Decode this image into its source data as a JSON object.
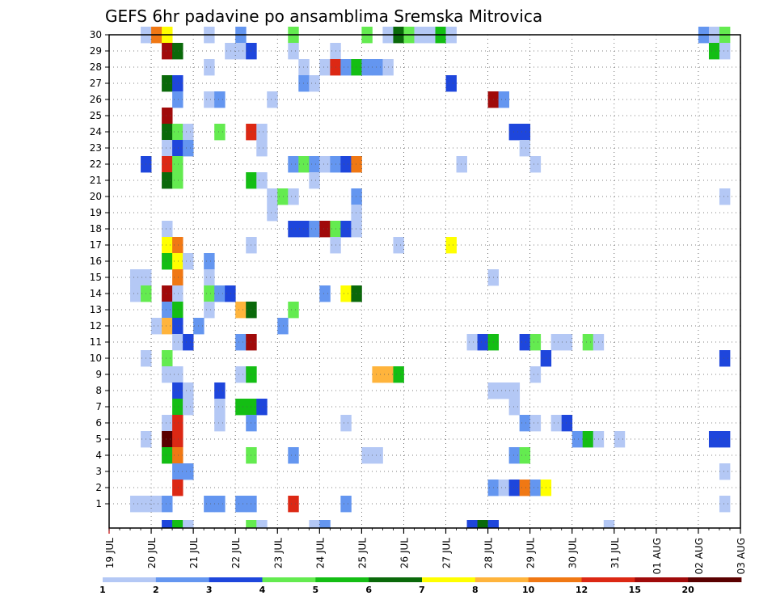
{
  "chart_data": {
    "type": "heatmap",
    "title": "GEFS 6hr padavine po ansamblima Sremska Mitrovica",
    "y_ticks": [
      "1",
      "2",
      "3",
      "4",
      "5",
      "6",
      "7",
      "8",
      "9",
      "10",
      "11",
      "12",
      "13",
      "14",
      "15",
      "16",
      "17",
      "18",
      "19",
      "20",
      "21",
      "22",
      "23",
      "24",
      "25",
      "26",
      "27",
      "28",
      "29",
      "30"
    ],
    "x_ticks": [
      "19 JUL",
      "20 JUL",
      "21 JUL",
      "22 JUL",
      "23 JUL",
      "24 JUL",
      "25 JUL",
      "26 JUL",
      "27 JUL",
      "28 JUL",
      "29 JUL",
      "30 JUL",
      "31 JUL",
      "01 AUG",
      "02 AUG",
      "03 AUG"
    ],
    "x_range_days": [
      "19 JUL",
      "03 AUG"
    ],
    "steps_per_day": 4,
    "legend_thresholds": [
      "1",
      "2",
      "3",
      "4",
      "5",
      "6",
      "7",
      "8",
      "10",
      "12",
      "15",
      "20"
    ],
    "colors": [
      "#b4c8f5",
      "#6496f0",
      "#1e46dc",
      "#64eb50",
      "#14be14",
      "#0a690a",
      "#ffff00",
      "#ffb43c",
      "#f07814",
      "#dc2814",
      "#a00a0a",
      "#5a0000"
    ],
    "grid": true,
    "cells": [
      [
        30,
        3,
        1
      ],
      [
        30,
        4,
        9
      ],
      [
        30,
        5,
        7
      ],
      [
        30,
        9,
        1
      ],
      [
        30,
        12,
        2
      ],
      [
        30,
        17,
        4
      ],
      [
        30,
        24,
        4
      ],
      [
        30,
        26,
        1
      ],
      [
        30,
        27,
        6
      ],
      [
        30,
        28,
        4
      ],
      [
        30,
        29,
        1
      ],
      [
        30,
        30,
        1
      ],
      [
        30,
        31,
        5
      ],
      [
        30,
        32,
        1
      ],
      [
        30,
        56,
        2
      ],
      [
        30,
        57,
        1
      ],
      [
        30,
        58,
        4
      ],
      [
        29,
        5,
        11
      ],
      [
        29,
        6,
        6
      ],
      [
        29,
        11,
        1
      ],
      [
        29,
        12,
        1
      ],
      [
        29,
        13,
        3
      ],
      [
        29,
        17,
        1
      ],
      [
        29,
        21,
        1
      ],
      [
        29,
        57,
        5
      ],
      [
        29,
        58,
        1
      ],
      [
        28,
        9,
        1
      ],
      [
        28,
        18,
        1
      ],
      [
        28,
        20,
        1
      ],
      [
        28,
        21,
        10
      ],
      [
        28,
        22,
        2
      ],
      [
        28,
        23,
        5
      ],
      [
        28,
        24,
        2
      ],
      [
        28,
        25,
        2
      ],
      [
        28,
        26,
        1
      ],
      [
        27,
        5,
        6
      ],
      [
        27,
        6,
        3
      ],
      [
        27,
        18,
        2
      ],
      [
        27,
        19,
        1
      ],
      [
        27,
        32,
        3
      ],
      [
        26,
        6,
        2
      ],
      [
        26,
        9,
        1
      ],
      [
        26,
        10,
        2
      ],
      [
        26,
        15,
        1
      ],
      [
        26,
        36,
        11
      ],
      [
        26,
        37,
        2
      ],
      [
        25,
        5,
        11
      ],
      [
        24,
        5,
        6
      ],
      [
        24,
        6,
        4
      ],
      [
        24,
        7,
        1
      ],
      [
        24,
        10,
        4
      ],
      [
        24,
        13,
        10
      ],
      [
        24,
        14,
        1
      ],
      [
        24,
        38,
        3
      ],
      [
        24,
        39,
        3
      ],
      [
        23,
        5,
        1
      ],
      [
        23,
        6,
        3
      ],
      [
        23,
        7,
        2
      ],
      [
        23,
        14,
        1
      ],
      [
        23,
        39,
        1
      ],
      [
        22,
        3,
        3
      ],
      [
        22,
        5,
        10
      ],
      [
        22,
        6,
        4
      ],
      [
        22,
        17,
        2
      ],
      [
        22,
        18,
        4
      ],
      [
        22,
        19,
        2
      ],
      [
        22,
        20,
        1
      ],
      [
        22,
        21,
        2
      ],
      [
        22,
        22,
        3
      ],
      [
        22,
        23,
        9
      ],
      [
        22,
        33,
        1
      ],
      [
        22,
        40,
        1
      ],
      [
        21,
        5,
        6
      ],
      [
        21,
        6,
        4
      ],
      [
        21,
        13,
        5
      ],
      [
        21,
        14,
        1
      ],
      [
        21,
        19,
        1
      ],
      [
        20,
        15,
        1
      ],
      [
        20,
        16,
        4
      ],
      [
        20,
        17,
        1
      ],
      [
        20,
        23,
        2
      ],
      [
        20,
        58,
        1
      ],
      [
        19,
        15,
        1
      ],
      [
        19,
        23,
        1
      ],
      [
        18,
        5,
        1
      ],
      [
        18,
        17,
        3
      ],
      [
        18,
        18,
        3
      ],
      [
        18,
        19,
        2
      ],
      [
        18,
        20,
        11
      ],
      [
        18,
        21,
        4
      ],
      [
        18,
        22,
        3
      ],
      [
        18,
        23,
        1
      ],
      [
        17,
        5,
        7
      ],
      [
        17,
        6,
        9
      ],
      [
        17,
        13,
        1
      ],
      [
        17,
        21,
        1
      ],
      [
        17,
        27,
        1
      ],
      [
        17,
        32,
        7
      ],
      [
        16,
        5,
        5
      ],
      [
        16,
        6,
        7
      ],
      [
        16,
        7,
        1
      ],
      [
        16,
        9,
        2
      ],
      [
        15,
        2,
        1
      ],
      [
        15,
        3,
        1
      ],
      [
        15,
        6,
        9
      ],
      [
        15,
        9,
        1
      ],
      [
        15,
        36,
        1
      ],
      [
        14,
        2,
        1
      ],
      [
        14,
        3,
        4
      ],
      [
        14,
        5,
        11
      ],
      [
        14,
        6,
        1
      ],
      [
        14,
        9,
        4
      ],
      [
        14,
        10,
        2
      ],
      [
        14,
        11,
        3
      ],
      [
        14,
        20,
        2
      ],
      [
        14,
        22,
        7
      ],
      [
        14,
        23,
        6
      ],
      [
        13,
        5,
        2
      ],
      [
        13,
        6,
        5
      ],
      [
        13,
        9,
        1
      ],
      [
        13,
        12,
        8
      ],
      [
        13,
        13,
        6
      ],
      [
        13,
        17,
        4
      ],
      [
        12,
        4,
        1
      ],
      [
        12,
        5,
        8
      ],
      [
        12,
        6,
        3
      ],
      [
        12,
        8,
        2
      ],
      [
        12,
        16,
        2
      ],
      [
        11,
        6,
        1
      ],
      [
        11,
        7,
        3
      ],
      [
        11,
        12,
        2
      ],
      [
        11,
        13,
        11
      ],
      [
        11,
        34,
        1
      ],
      [
        11,
        35,
        3
      ],
      [
        11,
        36,
        5
      ],
      [
        11,
        39,
        3
      ],
      [
        11,
        40,
        4
      ],
      [
        11,
        42,
        1
      ],
      [
        11,
        43,
        1
      ],
      [
        11,
        45,
        4
      ],
      [
        11,
        46,
        1
      ],
      [
        10,
        3,
        1
      ],
      [
        10,
        5,
        4
      ],
      [
        10,
        41,
        3
      ],
      [
        10,
        58,
        3
      ],
      [
        9,
        5,
        1
      ],
      [
        9,
        6,
        1
      ],
      [
        9,
        12,
        1
      ],
      [
        9,
        13,
        5
      ],
      [
        9,
        25,
        8
      ],
      [
        9,
        26,
        8
      ],
      [
        9,
        27,
        5
      ],
      [
        9,
        40,
        1
      ],
      [
        8,
        6,
        3
      ],
      [
        8,
        7,
        1
      ],
      [
        8,
        10,
        3
      ],
      [
        8,
        36,
        1
      ],
      [
        8,
        37,
        1
      ],
      [
        8,
        38,
        1
      ],
      [
        7,
        6,
        5
      ],
      [
        7,
        7,
        1
      ],
      [
        7,
        10,
        1
      ],
      [
        7,
        12,
        5
      ],
      [
        7,
        13,
        5
      ],
      [
        7,
        14,
        3
      ],
      [
        7,
        38,
        1
      ],
      [
        6,
        5,
        1
      ],
      [
        6,
        6,
        10
      ],
      [
        6,
        10,
        1
      ],
      [
        6,
        13,
        2
      ],
      [
        6,
        22,
        1
      ],
      [
        6,
        39,
        2
      ],
      [
        6,
        40,
        1
      ],
      [
        6,
        42,
        1
      ],
      [
        6,
        43,
        3
      ],
      [
        5,
        3,
        1
      ],
      [
        5,
        5,
        12
      ],
      [
        5,
        6,
        10
      ],
      [
        5,
        44,
        2
      ],
      [
        5,
        45,
        5
      ],
      [
        5,
        46,
        1
      ],
      [
        5,
        48,
        1
      ],
      [
        5,
        57,
        3
      ],
      [
        5,
        58,
        3
      ],
      [
        4,
        5,
        5
      ],
      [
        4,
        6,
        9
      ],
      [
        4,
        13,
        4
      ],
      [
        4,
        17,
        2
      ],
      [
        4,
        24,
        1
      ],
      [
        4,
        25,
        1
      ],
      [
        4,
        38,
        2
      ],
      [
        4,
        39,
        4
      ],
      [
        3,
        6,
        2
      ],
      [
        3,
        7,
        2
      ],
      [
        3,
        58,
        1
      ],
      [
        2,
        6,
        10
      ],
      [
        2,
        36,
        2
      ],
      [
        2,
        37,
        1
      ],
      [
        2,
        38,
        3
      ],
      [
        2,
        39,
        9
      ],
      [
        2,
        40,
        2
      ],
      [
        2,
        41,
        7
      ],
      [
        1,
        2,
        1
      ],
      [
        1,
        3,
        1
      ],
      [
        1,
        4,
        1
      ],
      [
        1,
        5,
        2
      ],
      [
        1,
        9,
        2
      ],
      [
        1,
        10,
        2
      ],
      [
        1,
        12,
        2
      ],
      [
        1,
        13,
        2
      ],
      [
        1,
        17,
        10
      ],
      [
        1,
        22,
        2
      ],
      [
        1,
        58,
        1
      ],
      [
        0,
        5,
        3
      ],
      [
        0,
        6,
        5
      ],
      [
        0,
        7,
        1
      ],
      [
        0,
        13,
        4
      ],
      [
        0,
        14,
        1
      ],
      [
        0,
        19,
        1
      ],
      [
        0,
        20,
        2
      ],
      [
        0,
        34,
        3
      ],
      [
        0,
        35,
        6
      ],
      [
        0,
        36,
        3
      ],
      [
        0,
        47,
        1
      ]
    ]
  }
}
